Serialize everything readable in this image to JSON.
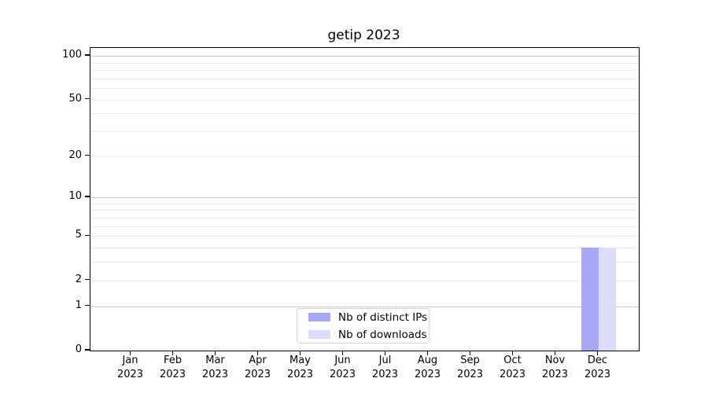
{
  "chart_data": {
    "type": "bar",
    "title": "getip 2023",
    "categories": [
      "Jan 2023",
      "Feb 2023",
      "Mar 2023",
      "Apr 2023",
      "May 2023",
      "Jun 2023",
      "Jul 2023",
      "Aug 2023",
      "Sep 2023",
      "Oct 2023",
      "Nov 2023",
      "Dec 2023"
    ],
    "series": [
      {
        "name": "Nb of distinct IPs",
        "color": "#a7a7f7",
        "values": [
          0,
          0,
          0,
          0,
          0,
          0,
          0,
          0,
          0,
          0,
          0,
          4
        ]
      },
      {
        "name": "Nb of downloads",
        "color": "#dbdbfa",
        "values": [
          0,
          0,
          0,
          0,
          0,
          0,
          0,
          0,
          0,
          0,
          0,
          4
        ]
      }
    ],
    "xlabel": "",
    "ylabel": "",
    "yscale": "log1p",
    "ylim": [
      0,
      113
    ],
    "ytick_values": [
      0,
      1,
      2,
      5,
      10,
      20,
      50,
      100
    ],
    "ytick_labels": [
      "0",
      "1",
      "2",
      "5",
      "10",
      "20",
      "50",
      "100"
    ],
    "major_gridline_values": [
      1,
      10,
      100
    ],
    "minor_gridline_values": [
      2,
      3,
      4,
      5,
      6,
      7,
      8,
      9,
      20,
      30,
      40,
      50,
      60,
      70,
      80,
      90
    ],
    "grid": "horizontal",
    "legend_position": "lower center",
    "colors": {
      "major_gridline": "#c9c9c9",
      "minor_gridline": "#ededed",
      "spine": "#000000",
      "background": "#ffffff",
      "text": "#000000",
      "legend_border": "#d2d2d2"
    }
  }
}
